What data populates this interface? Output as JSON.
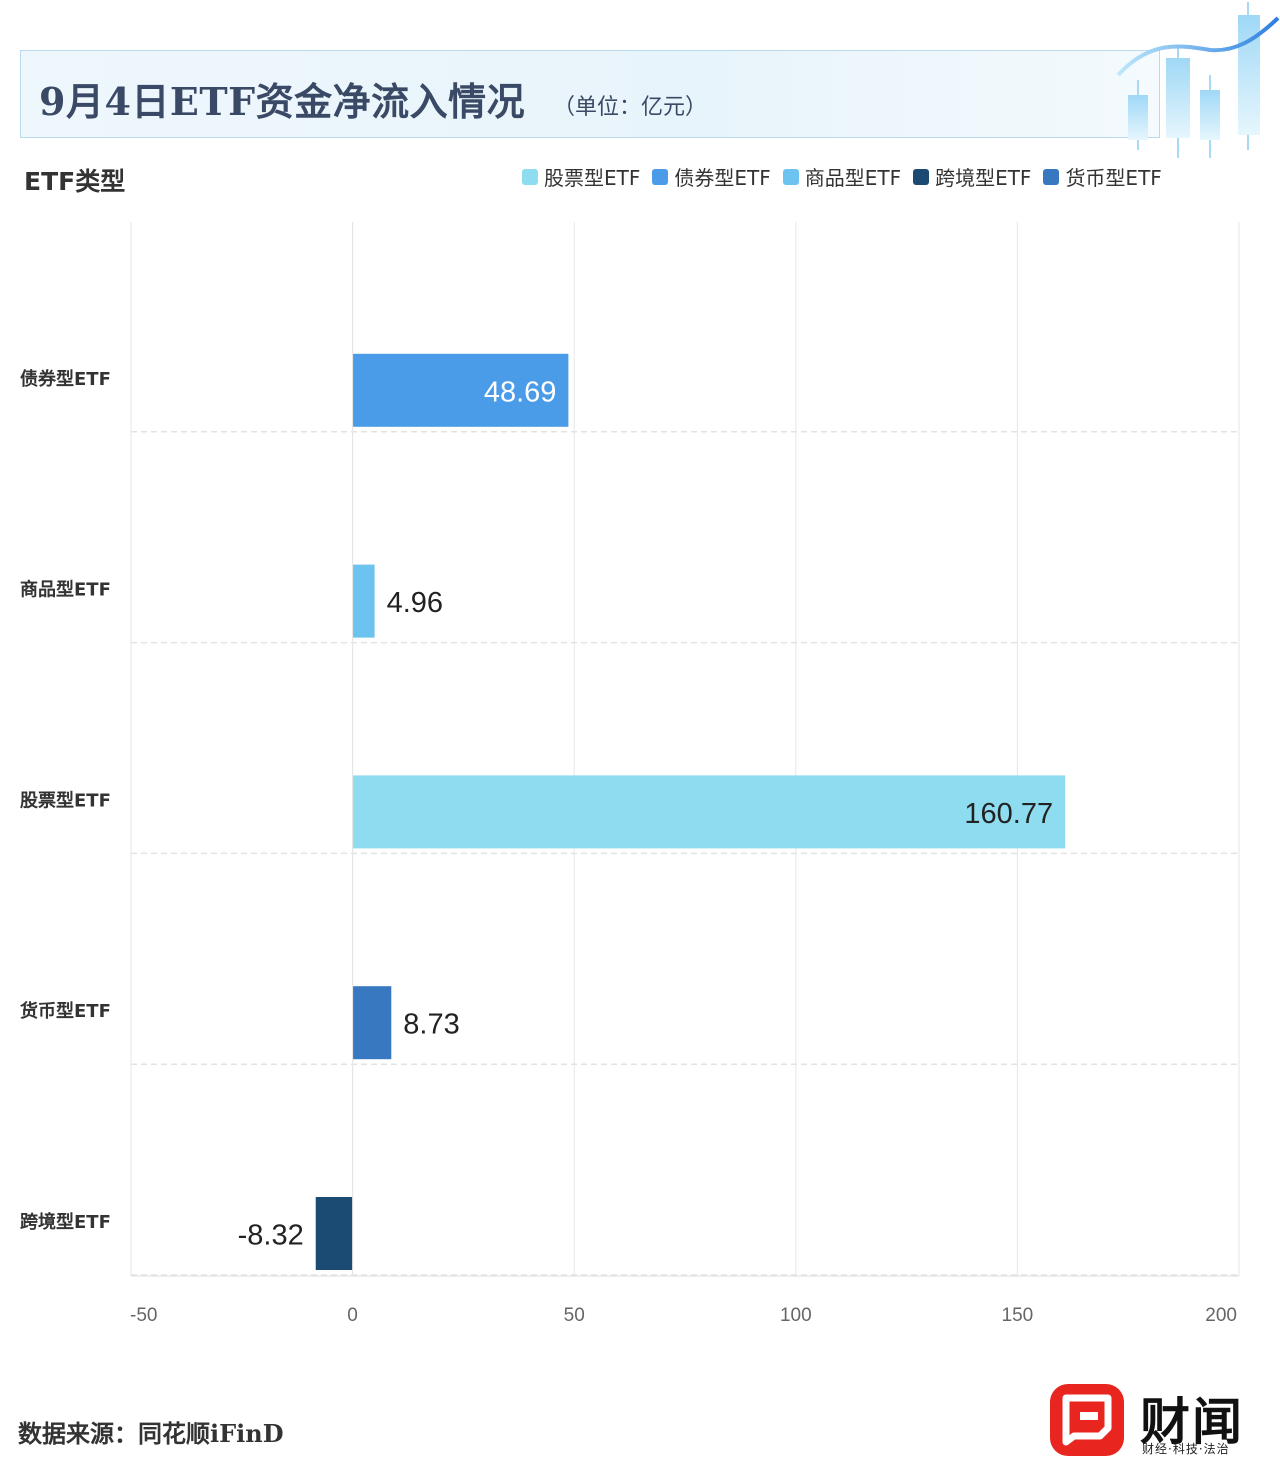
{
  "header": {
    "title": "9月4日ETF资金净流入情况",
    "unit": "（单位：亿元）"
  },
  "y_axis_title": "ETF类型",
  "source": "数据来源：同花顺iFinD",
  "brand": {
    "name": "财闻",
    "slogan": "财经·科技·法治",
    "color": "#e8261f",
    "icon": "chat-bubble-icon"
  },
  "chart_data": {
    "type": "bar",
    "orientation": "horizontal",
    "categories": [
      "债券型ETF",
      "商品型ETF",
      "股票型ETF",
      "货币型ETF",
      "跨境型ETF"
    ],
    "values": [
      48.69,
      4.96,
      160.77,
      8.73,
      -8.32
    ],
    "value_labels": [
      "48.69",
      "4.96",
      "160.77",
      "8.73",
      "-8.32"
    ],
    "colors": [
      "#4a9be8",
      "#6cc3ef",
      "#8edcf0",
      "#3778c0",
      "#1b4a72"
    ],
    "xlim": [
      -50,
      200
    ],
    "x_ticks": [
      -50,
      0,
      50,
      100,
      150,
      200
    ],
    "x_tick_labels": [
      "-50",
      "0",
      "50",
      "100",
      "150",
      "200"
    ],
    "grid": true,
    "legend_position": "top-right",
    "legend": [
      {
        "name": "股票型ETF",
        "color": "#8edcf0"
      },
      {
        "name": "债券型ETF",
        "color": "#4a9be8"
      },
      {
        "name": "商品型ETF",
        "color": "#6cc3ef"
      },
      {
        "name": "跨境型ETF",
        "color": "#1b4a72"
      },
      {
        "name": "货币型ETF",
        "color": "#3778c0"
      }
    ]
  }
}
